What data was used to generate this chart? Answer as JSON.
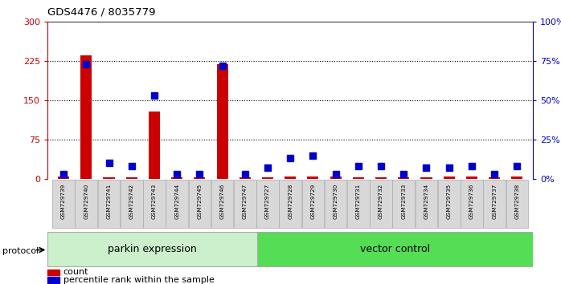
{
  "title": "GDS4476 / 8035779",
  "samples": [
    "GSM729739",
    "GSM729740",
    "GSM729741",
    "GSM729742",
    "GSM729743",
    "GSM729744",
    "GSM729745",
    "GSM729746",
    "GSM729747",
    "GSM729727",
    "GSM729728",
    "GSM729729",
    "GSM729730",
    "GSM729731",
    "GSM729732",
    "GSM729733",
    "GSM729734",
    "GSM729735",
    "GSM729736",
    "GSM729737",
    "GSM729738"
  ],
  "counts": [
    5,
    235,
    3,
    3,
    128,
    3,
    3,
    218,
    3,
    3,
    4,
    4,
    4,
    3,
    3,
    3,
    3,
    5,
    4,
    3,
    4
  ],
  "percentiles": [
    3,
    73,
    10,
    8,
    53,
    3,
    3,
    72,
    3,
    7,
    13,
    15,
    3,
    8,
    8,
    3,
    7,
    7,
    8,
    3,
    8
  ],
  "parkin_count": 9,
  "vector_count": 12,
  "parkin_label": "parkin expression",
  "vector_label": "vector control",
  "protocol_label": "protocol",
  "legend_count": "count",
  "legend_percentile": "percentile rank within the sample",
  "ylim_left": [
    0,
    300
  ],
  "ylim_right": [
    0,
    100
  ],
  "yticks_left": [
    0,
    75,
    150,
    225,
    300
  ],
  "yticks_right": [
    0,
    25,
    50,
    75,
    100
  ],
  "ytick_labels_left": [
    "0",
    "75",
    "150",
    "225",
    "300"
  ],
  "ytick_labels_right": [
    "0%",
    "25%",
    "50%",
    "75%",
    "100%"
  ],
  "count_color": "#cc0000",
  "percentile_color": "#0000cc",
  "parkin_bg": "#ccf0cc",
  "vector_bg": "#55dd55",
  "sample_bg": "#d8d8d8",
  "bar_width": 0.5,
  "marker_size": 6
}
